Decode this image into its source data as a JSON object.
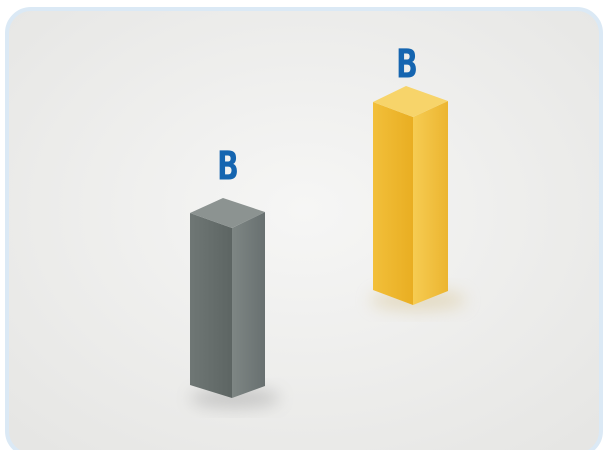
{
  "objects": [
    {
      "label": "B"
    },
    {
      "label": "B"
    }
  ]
}
